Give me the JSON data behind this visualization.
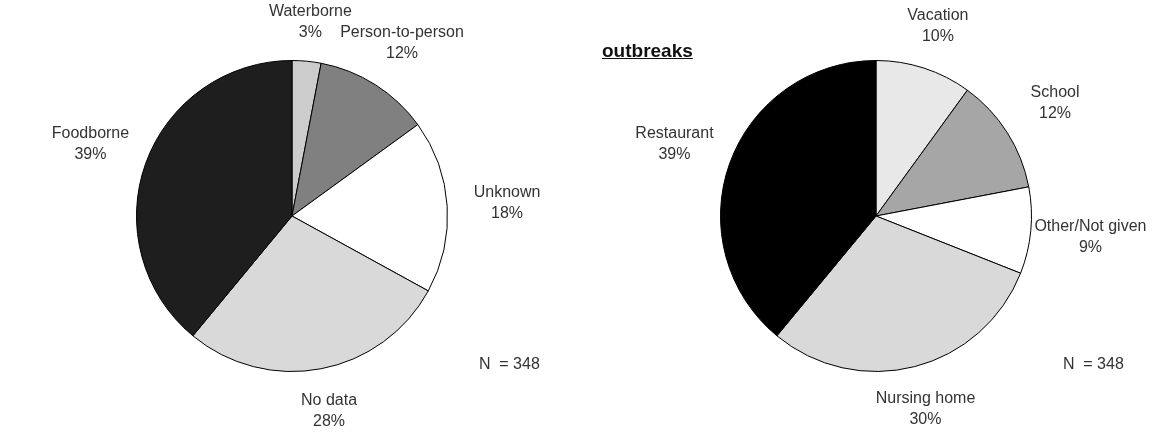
{
  "chart_data": [
    {
      "type": "pie",
      "categories": [
        "Waterborne",
        "Person-to-person",
        "Unknown",
        "No data",
        "Foodborne"
      ],
      "values": [
        3,
        12,
        18,
        28,
        39
      ],
      "value_labels": [
        "3%",
        "12%",
        "18%",
        "28%",
        "39%"
      ],
      "colors": [
        "#cccccc",
        "#808080",
        "#ffffff",
        "#d9d9d9",
        "#1e1e1e"
      ],
      "annotations": [
        "N  = 348"
      ]
    },
    {
      "type": "pie",
      "title": "outbreaks",
      "categories": [
        "Vacation",
        "School",
        "Other/Not given",
        "Nursing home",
        "Restaurant"
      ],
      "values": [
        10,
        12,
        9,
        30,
        39
      ],
      "value_labels": [
        "10%",
        "12%",
        "9%",
        "30%",
        "39%"
      ],
      "colors": [
        "#e8e8e8",
        "#a6a6a6",
        "#ffffff",
        "#d9d9d9",
        "#000000"
      ],
      "annotations": [
        "N  = 348"
      ]
    }
  ]
}
